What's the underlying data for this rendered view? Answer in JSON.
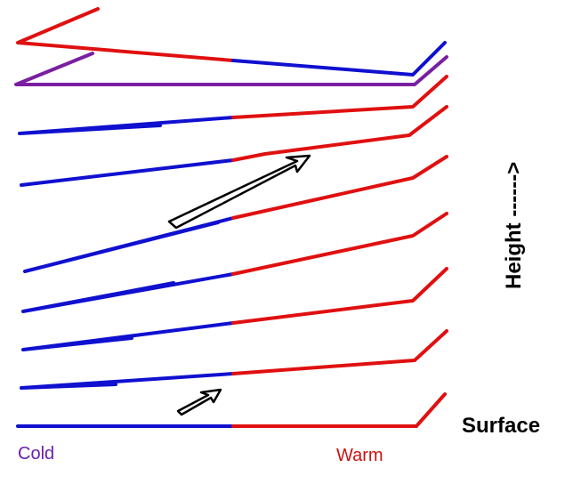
{
  "labels": {
    "cold": "Cold",
    "warm": "Warm",
    "surface": "Surface",
    "height": "Height ------>"
  },
  "colors": {
    "cold": "#1010d0",
    "warm": "#e01010",
    "mixed": "#7a1fa0",
    "cold_label": "#6a1fb0",
    "warm_label": "#cc1010",
    "arrow": "#000000"
  }
}
